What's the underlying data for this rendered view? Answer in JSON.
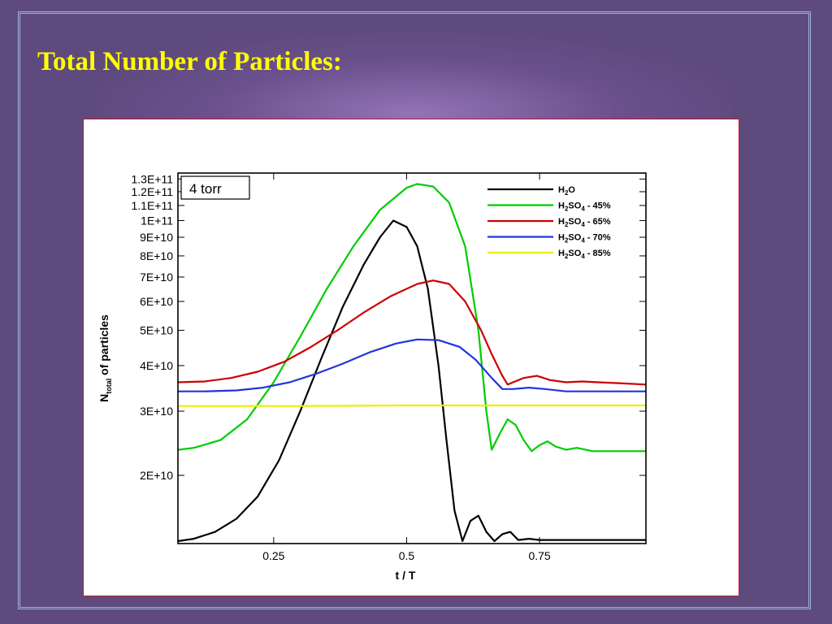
{
  "slide": {
    "title": "Total Number of Particles:"
  },
  "chart_data": {
    "type": "line",
    "annotation": "4 torr",
    "xlabel": "t / T",
    "ylabel": {
      "main": "N",
      "sub": "total",
      "rest": " of particles"
    },
    "x_ticks": [
      {
        "v": 0.25,
        "label": "0.25"
      },
      {
        "v": 0.5,
        "label": "0.5"
      },
      {
        "v": 0.75,
        "label": "0.75"
      }
    ],
    "y_ticks": [
      {
        "v": 20000000000.0,
        "label": "2E+10"
      },
      {
        "v": 30000000000.0,
        "label": "3E+10"
      },
      {
        "v": 40000000000.0,
        "label": "4E+10"
      },
      {
        "v": 50000000000.0,
        "label": "5E+10"
      },
      {
        "v": 60000000000.0,
        "label": "6E+10"
      },
      {
        "v": 70000000000.0,
        "label": "7E+10"
      },
      {
        "v": 80000000000.0,
        "label": "8E+10"
      },
      {
        "v": 90000000000.0,
        "label": "9E+10"
      },
      {
        "v": 100000000000.0,
        "label": "1E+11"
      },
      {
        "v": 110000000000.0,
        "label": "1.1E+11"
      },
      {
        "v": 120000000000.0,
        "label": "1.2E+11"
      },
      {
        "v": 130000000000.0,
        "label": "1.3E+11"
      }
    ],
    "xlim": [
      0.07,
      0.95
    ],
    "ylim": [
      13000000000.0,
      135000000000.0
    ],
    "yscale": "log",
    "legend_position": "top-right",
    "series": [
      {
        "name": "H2O",
        "legend": {
          "a": "H",
          "s1": "2",
          "b": "O",
          "s2": "",
          "c": ""
        },
        "color": "#000000",
        "points": [
          [
            0.07,
            13200000000.0
          ],
          [
            0.1,
            13400000000.0
          ],
          [
            0.14,
            14000000000.0
          ],
          [
            0.18,
            15200000000.0
          ],
          [
            0.22,
            17500000000.0
          ],
          [
            0.26,
            22000000000.0
          ],
          [
            0.3,
            30000000000.0
          ],
          [
            0.34,
            42000000000.0
          ],
          [
            0.38,
            58000000000.0
          ],
          [
            0.42,
            76000000000.0
          ],
          [
            0.45,
            90000000000.0
          ],
          [
            0.475,
            100000000000.0
          ],
          [
            0.5,
            96000000000.0
          ],
          [
            0.52,
            85000000000.0
          ],
          [
            0.54,
            65000000000.0
          ],
          [
            0.56,
            40000000000.0
          ],
          [
            0.575,
            25000000000.0
          ],
          [
            0.59,
            16000000000.0
          ],
          [
            0.605,
            13200000000.0
          ],
          [
            0.62,
            15000000000.0
          ],
          [
            0.635,
            15500000000.0
          ],
          [
            0.65,
            14000000000.0
          ],
          [
            0.665,
            13200000000.0
          ],
          [
            0.68,
            13800000000.0
          ],
          [
            0.695,
            14000000000.0
          ],
          [
            0.71,
            13300000000.0
          ],
          [
            0.73,
            13400000000.0
          ],
          [
            0.75,
            13300000000.0
          ],
          [
            0.8,
            13300000000.0
          ],
          [
            0.85,
            13300000000.0
          ],
          [
            0.95,
            13300000000.0
          ]
        ]
      },
      {
        "name": "H2SO4 - 45%",
        "legend": {
          "a": "H",
          "s1": "2",
          "b": "SO",
          "s2": "4",
          "c": " - 45%"
        },
        "color": "#00cc00",
        "points": [
          [
            0.07,
            23500000000.0
          ],
          [
            0.1,
            23800000000.0
          ],
          [
            0.15,
            25000000000.0
          ],
          [
            0.2,
            28500000000.0
          ],
          [
            0.25,
            36000000000.0
          ],
          [
            0.3,
            48000000000.0
          ],
          [
            0.35,
            65000000000.0
          ],
          [
            0.4,
            85000000000.0
          ],
          [
            0.45,
            107000000000.0
          ],
          [
            0.5,
            123000000000.0
          ],
          [
            0.52,
            126000000000.0
          ],
          [
            0.55,
            124000000000.0
          ],
          [
            0.58,
            112000000000.0
          ],
          [
            0.61,
            85000000000.0
          ],
          [
            0.635,
            50000000000.0
          ],
          [
            0.65,
            30000000000.0
          ],
          [
            0.66,
            23500000000.0
          ],
          [
            0.675,
            26000000000.0
          ],
          [
            0.69,
            28500000000.0
          ],
          [
            0.705,
            27500000000.0
          ],
          [
            0.72,
            25000000000.0
          ],
          [
            0.735,
            23300000000.0
          ],
          [
            0.75,
            24200000000.0
          ],
          [
            0.765,
            24800000000.0
          ],
          [
            0.78,
            24000000000.0
          ],
          [
            0.8,
            23500000000.0
          ],
          [
            0.82,
            23800000000.0
          ],
          [
            0.85,
            23300000000.0
          ],
          [
            0.9,
            23300000000.0
          ],
          [
            0.95,
            23300000000.0
          ]
        ]
      },
      {
        "name": "H2SO4 - 65%",
        "legend": {
          "a": "H",
          "s1": "2",
          "b": "SO",
          "s2": "4",
          "c": " - 65%"
        },
        "color": "#cc0000",
        "points": [
          [
            0.07,
            36000000000.0
          ],
          [
            0.12,
            36200000000.0
          ],
          [
            0.17,
            37000000000.0
          ],
          [
            0.22,
            38500000000.0
          ],
          [
            0.27,
            41000000000.0
          ],
          [
            0.32,
            45000000000.0
          ],
          [
            0.37,
            50000000000.0
          ],
          [
            0.42,
            56000000000.0
          ],
          [
            0.47,
            62000000000.0
          ],
          [
            0.52,
            67000000000.0
          ],
          [
            0.55,
            68500000000.0
          ],
          [
            0.58,
            67000000000.0
          ],
          [
            0.61,
            60000000000.0
          ],
          [
            0.64,
            50000000000.0
          ],
          [
            0.66,
            43000000000.0
          ],
          [
            0.68,
            37500000000.0
          ],
          [
            0.69,
            35500000000.0
          ],
          [
            0.7,
            36000000000.0
          ],
          [
            0.72,
            37000000000.0
          ],
          [
            0.745,
            37500000000.0
          ],
          [
            0.77,
            36500000000.0
          ],
          [
            0.8,
            36000000000.0
          ],
          [
            0.83,
            36200000000.0
          ],
          [
            0.86,
            36000000000.0
          ],
          [
            0.9,
            35800000000.0
          ],
          [
            0.95,
            35500000000.0
          ]
        ]
      },
      {
        "name": "H2SO4 - 70%",
        "legend": {
          "a": "H",
          "s1": "2",
          "b": "SO",
          "s2": "4",
          "c": " - 70%"
        },
        "color": "#2233dd",
        "points": [
          [
            0.07,
            34000000000.0
          ],
          [
            0.12,
            34000000000.0
          ],
          [
            0.18,
            34200000000.0
          ],
          [
            0.23,
            34800000000.0
          ],
          [
            0.28,
            36000000000.0
          ],
          [
            0.33,
            38000000000.0
          ],
          [
            0.38,
            40500000000.0
          ],
          [
            0.43,
            43500000000.0
          ],
          [
            0.48,
            46000000000.0
          ],
          [
            0.52,
            47200000000.0
          ],
          [
            0.56,
            47000000000.0
          ],
          [
            0.6,
            45000000000.0
          ],
          [
            0.63,
            41500000000.0
          ],
          [
            0.66,
            37000000000.0
          ],
          [
            0.68,
            34500000000.0
          ],
          [
            0.7,
            34500000000.0
          ],
          [
            0.73,
            34800000000.0
          ],
          [
            0.76,
            34500000000.0
          ],
          [
            0.8,
            34000000000.0
          ],
          [
            0.85,
            34000000000.0
          ],
          [
            0.9,
            34000000000.0
          ],
          [
            0.95,
            34000000000.0
          ]
        ]
      },
      {
        "name": "H2SO4 - 85%",
        "legend": {
          "a": "H",
          "s1": "2",
          "b": "SO",
          "s2": "4",
          "c": " - 85%"
        },
        "color": "#eeee00",
        "points": [
          [
            0.07,
            31000000000.0
          ],
          [
            0.3,
            31000000000.0
          ],
          [
            0.5,
            31100000000.0
          ],
          [
            0.7,
            31100000000.0
          ],
          [
            0.95,
            31100000000.0
          ]
        ]
      }
    ]
  }
}
